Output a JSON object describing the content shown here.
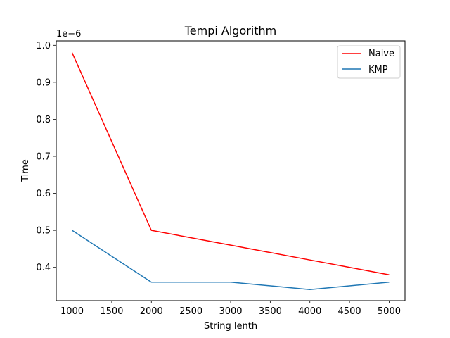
{
  "chart_data": {
    "type": "line",
    "title": "Tempi Algorithm",
    "xlabel": "String lenth",
    "ylabel": "Time",
    "y_offset_label": "1e−6",
    "x": [
      1000,
      2000,
      3000,
      4000,
      5000
    ],
    "series": [
      {
        "name": "Naive",
        "color": "#ff0000",
        "values": [
          0.98,
          0.5,
          0.46,
          0.42,
          0.38
        ]
      },
      {
        "name": "KMP",
        "color": "#1f77b4",
        "values": [
          0.5,
          0.36,
          0.36,
          0.34,
          0.36
        ]
      }
    ],
    "xlim": [
      800,
      5200
    ],
    "ylim": [
      0.31,
      1.012
    ],
    "xticks": [
      1000,
      1500,
      2000,
      2500,
      3000,
      3500,
      4000,
      4500,
      5000
    ],
    "xtick_labels": [
      "1000",
      "1500",
      "2000",
      "2500",
      "3000",
      "3500",
      "4000",
      "4500",
      "5000"
    ],
    "yticks": [
      0.4,
      0.5,
      0.6,
      0.7,
      0.8,
      0.9,
      1.0
    ],
    "ytick_labels": [
      "0.4",
      "0.5",
      "0.6",
      "0.7",
      "0.8",
      "0.9",
      "1.0"
    ],
    "grid": false,
    "legend_position": "top-right"
  }
}
